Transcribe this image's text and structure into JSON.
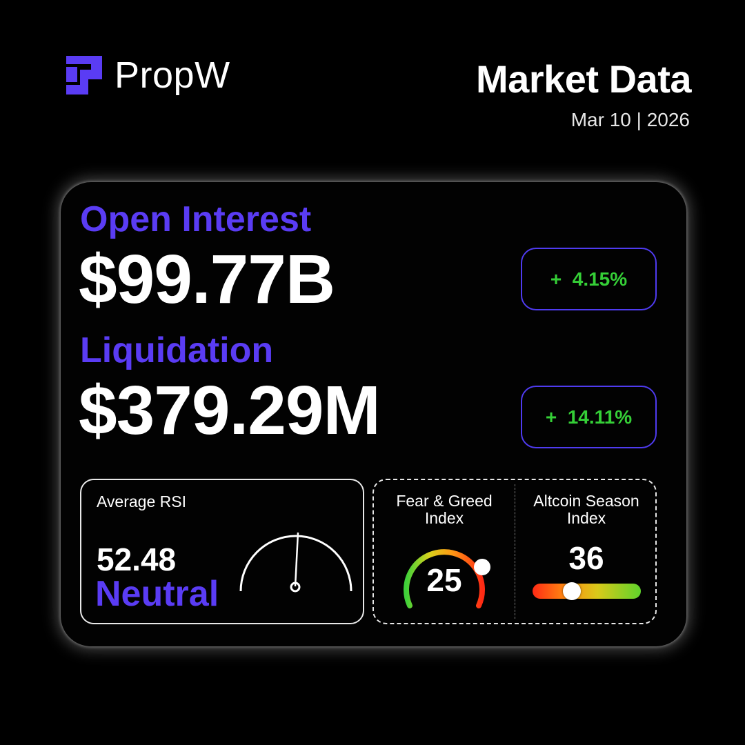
{
  "brand": {
    "name": "PropW",
    "accent": "#5a3cf4"
  },
  "header": {
    "title": "Market Data",
    "date": "Mar 10 | 2026"
  },
  "open_interest": {
    "label": "Open Interest",
    "value": "$99.77B",
    "change": "+  4.15%"
  },
  "liquidation": {
    "label": "Liquidation",
    "value": "$379.29M",
    "change": "+  14.11%"
  },
  "rsi": {
    "title": "Average RSI",
    "value": "52.48",
    "state": "Neutral"
  },
  "fear_greed": {
    "title_line1": "Fear & Greed",
    "title_line2": "Index",
    "value": "25",
    "level": 25
  },
  "altcoin_season": {
    "title_line1": "Altcoin Season",
    "title_line2": "Index",
    "value": "36",
    "level": 36
  },
  "colors": {
    "positive": "#35cf37",
    "border_accent": "#4f3bf0"
  },
  "icons": [
    "propw-logo-icon",
    "rsi-gauge-icon",
    "fear-greed-gauge-icon",
    "altcoin-slider-icon"
  ]
}
